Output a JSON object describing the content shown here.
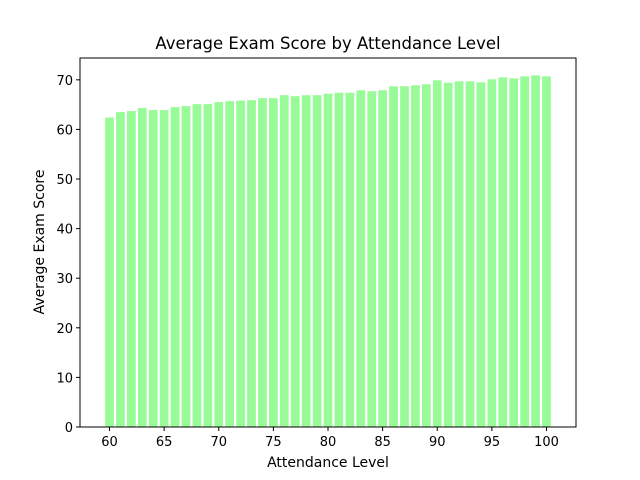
{
  "chart_data": {
    "type": "bar",
    "title": "Average Exam Score by Attendance Level",
    "xlabel": "Attendance Level",
    "ylabel": "Average Exam Score",
    "x": [
      60,
      61,
      62,
      63,
      64,
      65,
      66,
      67,
      68,
      69,
      70,
      71,
      72,
      73,
      74,
      75,
      76,
      77,
      78,
      79,
      80,
      81,
      82,
      83,
      84,
      85,
      86,
      87,
      88,
      89,
      90,
      91,
      92,
      93,
      94,
      95,
      96,
      97,
      98,
      99,
      100
    ],
    "values": [
      62.4,
      63.5,
      63.7,
      64.3,
      63.9,
      63.9,
      64.5,
      64.7,
      65.1,
      65.1,
      65.5,
      65.7,
      65.8,
      65.9,
      66.3,
      66.3,
      66.9,
      66.7,
      66.9,
      66.9,
      67.2,
      67.4,
      67.4,
      67.9,
      67.7,
      67.9,
      68.7,
      68.7,
      68.9,
      69.1,
      69.9,
      69.4,
      69.7,
      69.7,
      69.5,
      70.1,
      70.5,
      70.3,
      70.7,
      70.9,
      70.7
    ],
    "xlim": [
      57.3,
      102.7
    ],
    "ylim": [
      0,
      74.4
    ],
    "xticks": [
      60,
      65,
      70,
      75,
      80,
      85,
      90,
      95,
      100
    ],
    "yticks": [
      0,
      10,
      20,
      30,
      40,
      50,
      60,
      70
    ],
    "bar_color": "#98fb98",
    "grid": false
  }
}
